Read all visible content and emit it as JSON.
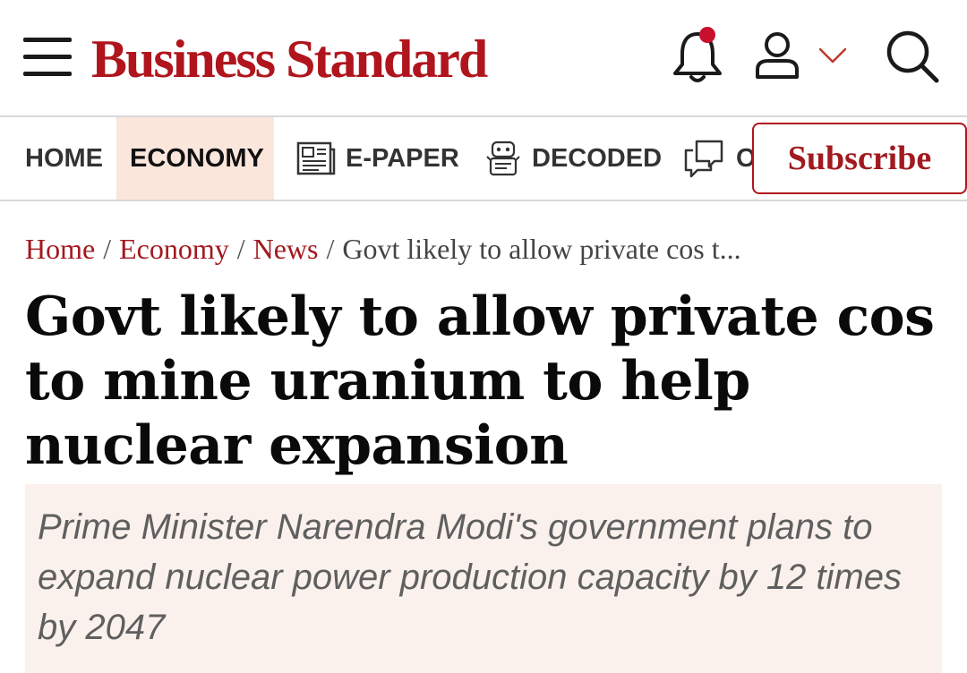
{
  "header": {
    "logo_text": "Business Standard",
    "brand_color": "#b0151d",
    "icons": [
      "menu-icon",
      "bell-icon",
      "user-icon",
      "chevron-down-icon",
      "search-icon"
    ],
    "notification_dot_color": "#c8102e"
  },
  "nav": {
    "items": [
      {
        "label": "HOME"
      },
      {
        "label": "ECONOMY",
        "active": true
      },
      {
        "label": "E-PAPER",
        "icon": "newspaper-icon"
      },
      {
        "label": "DECODED",
        "icon": "robot-icon"
      },
      {
        "label": "O",
        "icon": "chat-icon"
      }
    ],
    "subscribe_label": "Subscribe"
  },
  "breadcrumb": {
    "items": [
      "Home",
      "Economy",
      "News"
    ],
    "separator": "/",
    "current": "Govt likely to allow private cos t..."
  },
  "article": {
    "headline": "Govt likely to allow private cos to mine uranium to help nuclear expansion",
    "summary": "Prime Minister Narendra Modi's government plans to expand nuclear power production capacity by 12 times by 2047"
  }
}
